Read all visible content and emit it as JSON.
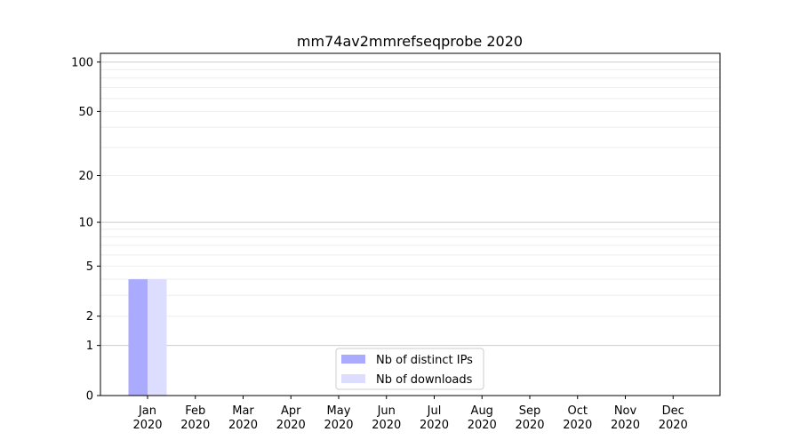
{
  "chart_data": {
    "type": "bar",
    "title": "mm74av2mmrefseqprobe 2020",
    "xlabel": "",
    "ylabel": "",
    "yscale": "log10(1+y)",
    "ylim": [
      0,
      113
    ],
    "yticks": [
      0,
      1,
      2,
      5,
      10,
      20,
      50,
      100
    ],
    "ytick_labels": [
      "0",
      "1",
      "2",
      "5",
      "10",
      "20",
      "50",
      "100"
    ],
    "grid": "horizontal",
    "categories": [
      "Jan\n2020",
      "Feb\n2020",
      "Mar\n2020",
      "Apr\n2020",
      "May\n2020",
      "Jun\n2020",
      "Jul\n2020",
      "Aug\n2020",
      "Sep\n2020",
      "Oct\n2020",
      "Nov\n2020",
      "Dec\n2020"
    ],
    "series": [
      {
        "name": "Nb of distinct IPs",
        "color": "#aaaaff",
        "values": [
          4,
          0,
          0,
          0,
          0,
          0,
          0,
          0,
          0,
          0,
          0,
          0
        ]
      },
      {
        "name": "Nb of downloads",
        "color": "#ddddff",
        "values": [
          4,
          0,
          0,
          0,
          0,
          0,
          0,
          0,
          0,
          0,
          0,
          0
        ]
      }
    ],
    "legend": "bottom-center"
  }
}
